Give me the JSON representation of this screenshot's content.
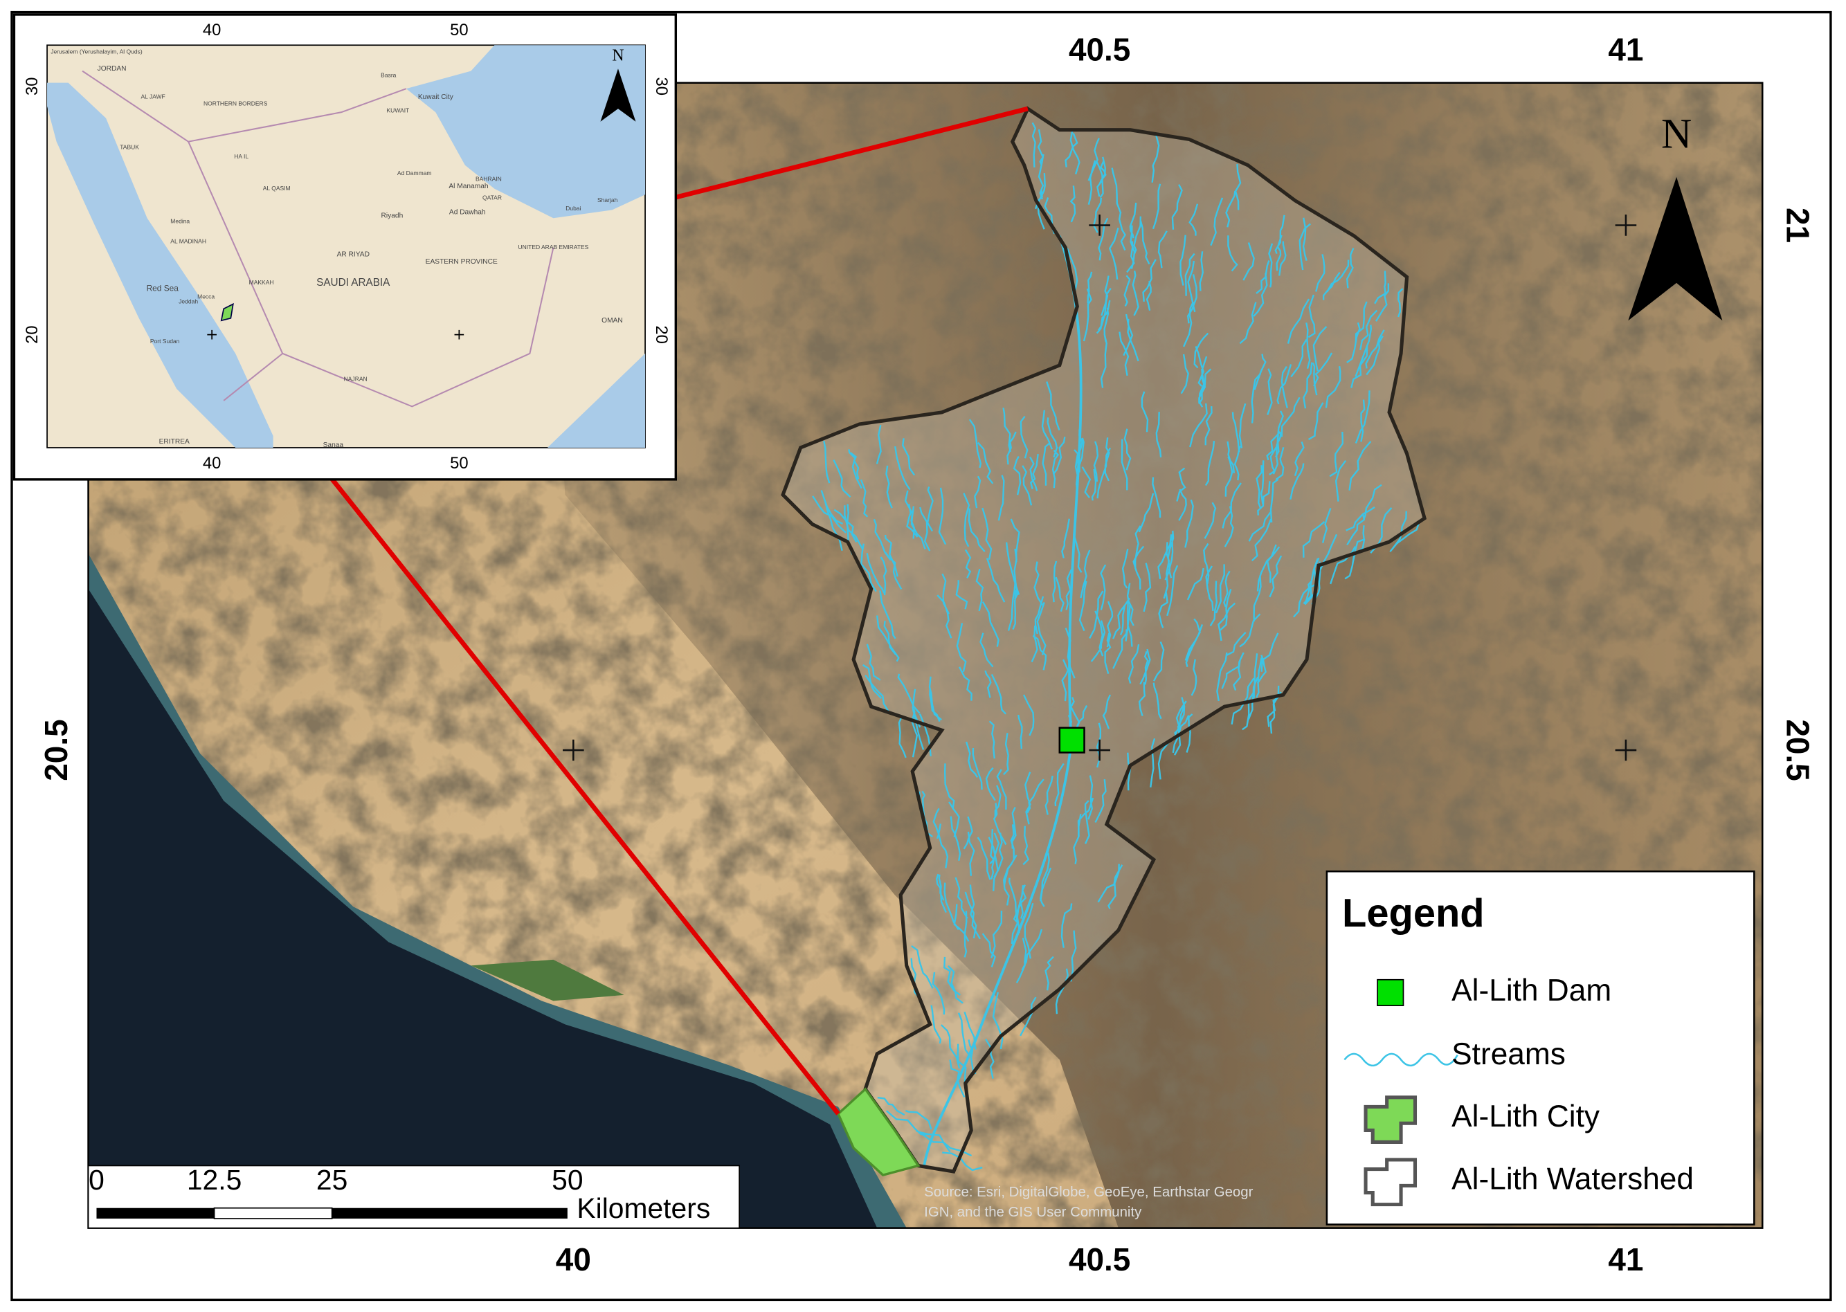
{
  "main_map": {
    "top_labels": [
      40.5,
      41
    ],
    "bottom_labels": [
      40,
      40.5,
      41
    ],
    "left_labels": [
      20.5
    ],
    "right_labels": [
      21,
      20.5
    ],
    "north_arrow": "N",
    "attribution": [
      "Source: Esri, DigitalGlobe, GeoEye, Earthstar Geogr",
      "IGN, and the GIS User Community"
    ]
  },
  "scale_bar": {
    "ticks": [
      0,
      12.5,
      25,
      50
    ],
    "unit": "Kilometers"
  },
  "legend": {
    "title": "Legend",
    "items": [
      "Al-Lith Dam",
      "Streams",
      "Al-Lith City",
      "Al-Lith Watershed"
    ]
  },
  "inset_map": {
    "top_labels": [
      40,
      50
    ],
    "bottom_labels": [
      40,
      50
    ],
    "left_labels": [
      30,
      20
    ],
    "right_labels": [
      30,
      20
    ],
    "north_arrow": "N",
    "places": [
      "Jerusalem (Yerushalayim, Al Quds)",
      "JORDAN",
      "AL JAWF",
      "NORTHERN BORDERS",
      "Basra",
      "Kuwait City",
      "KUWAIT",
      "TABUK",
      "HA IL",
      "AL QASIM",
      "Ad Dammam",
      "Al Manamah",
      "BAHRAIN",
      "QATAR",
      "Ad Dawhah",
      "Riyadh",
      "Medina",
      "AL MADINAH",
      "AR RIYAD",
      "EASTERN PROVINCE",
      "UNITED ARAB EMIRATES",
      "Red Sea",
      "MAKKAH",
      "SAUDI ARABIA",
      "Mecca",
      "Jeddah",
      "OMAN",
      "Port Sudan",
      "NAJRAN",
      "ERITREA",
      "Sanaa",
      "Dubai",
      "Sharjah"
    ]
  }
}
